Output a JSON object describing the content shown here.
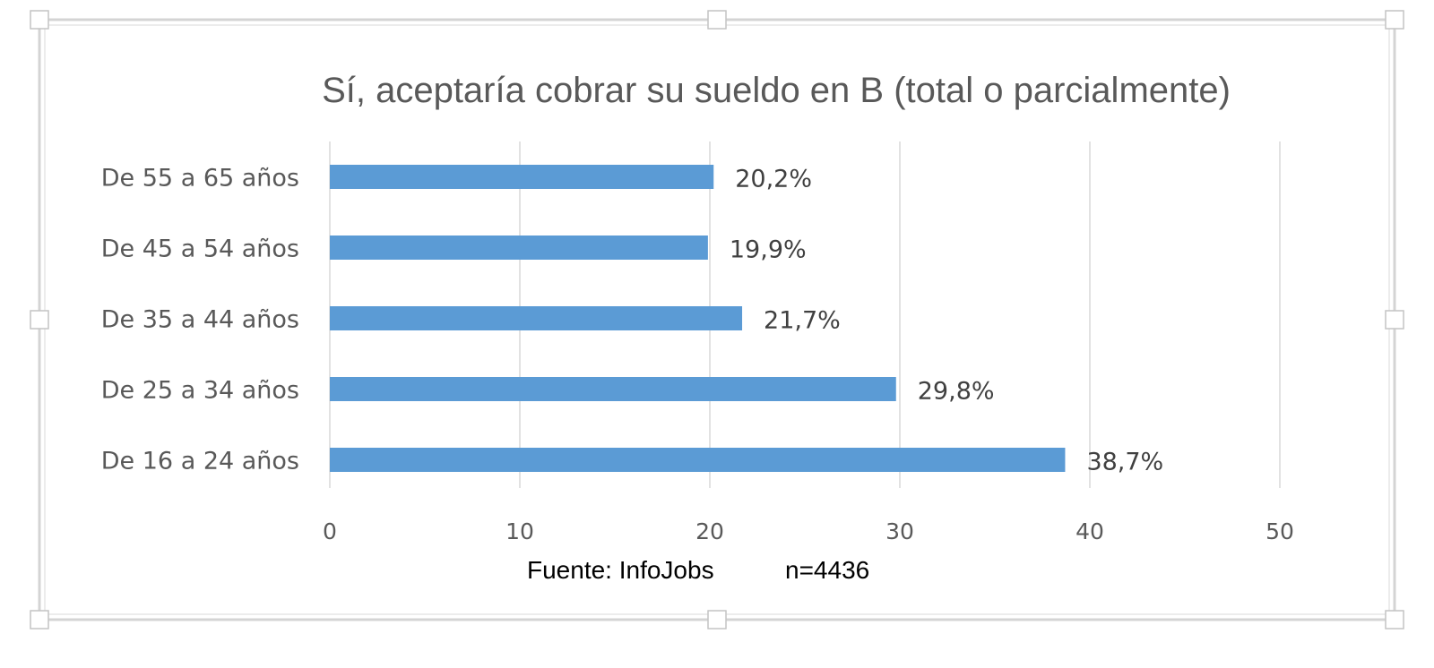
{
  "chart_data": {
    "type": "bar",
    "orientation": "horizontal",
    "title": "Sí, aceptaría cobrar su sueldo en B (total o parcialmente)",
    "categories": [
      "De 55 a 65 años",
      "De 45 a 54 años",
      "De 35 a 44 años",
      "De 25 a 34 años",
      "De 16 a 24 años"
    ],
    "values": [
      20.2,
      19.9,
      21.7,
      29.8,
      38.7
    ],
    "data_labels": [
      "20,2%",
      "19,9%",
      "21,7%",
      "29,8%",
      "38,7%"
    ],
    "xlim": [
      0,
      50
    ],
    "xticks": [
      "0",
      "10",
      "20",
      "30",
      "40",
      "50"
    ],
    "xlabel": "",
    "ylabel": "",
    "grid": true,
    "bar_color": "#5b9bd5"
  },
  "footer": {
    "source": "Fuente: InfoJobs",
    "sample": "n=4436"
  }
}
